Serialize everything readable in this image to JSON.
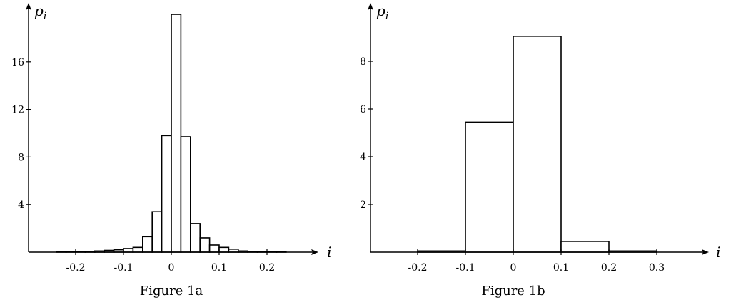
{
  "chart_data": [
    {
      "type": "bar",
      "caption": "Figure 1a",
      "xlabel": "i",
      "ylabel": "p_i",
      "ylabel_main": "p",
      "ylabel_sub": "i",
      "xlim": [
        -0.3,
        0.3
      ],
      "ylim": [
        0,
        20
      ],
      "xticks": [
        -0.2,
        -0.1,
        0,
        0.1,
        0.2
      ],
      "xtick_labels": [
        "-0.2",
        "-0.1",
        "0",
        "0.1",
        "0.2"
      ],
      "yticks": [
        4,
        8,
        12,
        16
      ],
      "ytick_labels": [
        "4",
        "8",
        "12",
        "16"
      ],
      "bin_edges": [
        -0.24,
        -0.22,
        -0.2,
        -0.18,
        -0.16,
        -0.14,
        -0.12,
        -0.1,
        -0.08,
        -0.06,
        -0.04,
        -0.02,
        0,
        0.02,
        0.04,
        0.06,
        0.08,
        0.1,
        0.12,
        0.14,
        0.16,
        0.18,
        0.2,
        0.22,
        0.24
      ],
      "values": [
        0.05,
        0.05,
        0.05,
        0.05,
        0.1,
        0.15,
        0.2,
        0.3,
        0.4,
        1.3,
        3.4,
        9.8,
        20.0,
        9.7,
        2.4,
        1.2,
        0.6,
        0.4,
        0.25,
        0.1,
        0.05,
        0.05,
        0.05,
        0.05
      ],
      "grid": false
    },
    {
      "type": "bar",
      "caption": "Figure 1b",
      "xlabel": "i",
      "ylabel": "p_i",
      "ylabel_main": "p",
      "ylabel_sub": "i",
      "xlim": [
        -0.3,
        0.4
      ],
      "ylim": [
        0,
        10
      ],
      "xticks": [
        -0.2,
        -0.1,
        0,
        0.1,
        0.2,
        0.3
      ],
      "xtick_labels": [
        "-0.2",
        "-0.1",
        "0",
        "0.1",
        "0.2",
        "0.3"
      ],
      "yticks": [
        2,
        4,
        6,
        8
      ],
      "ytick_labels": [
        "2",
        "4",
        "6",
        "8"
      ],
      "bin_edges": [
        -0.2,
        -0.1,
        0,
        0.1,
        0.2,
        0.3
      ],
      "values": [
        0.05,
        5.45,
        9.05,
        0.45,
        0.05
      ],
      "grid": false
    }
  ]
}
